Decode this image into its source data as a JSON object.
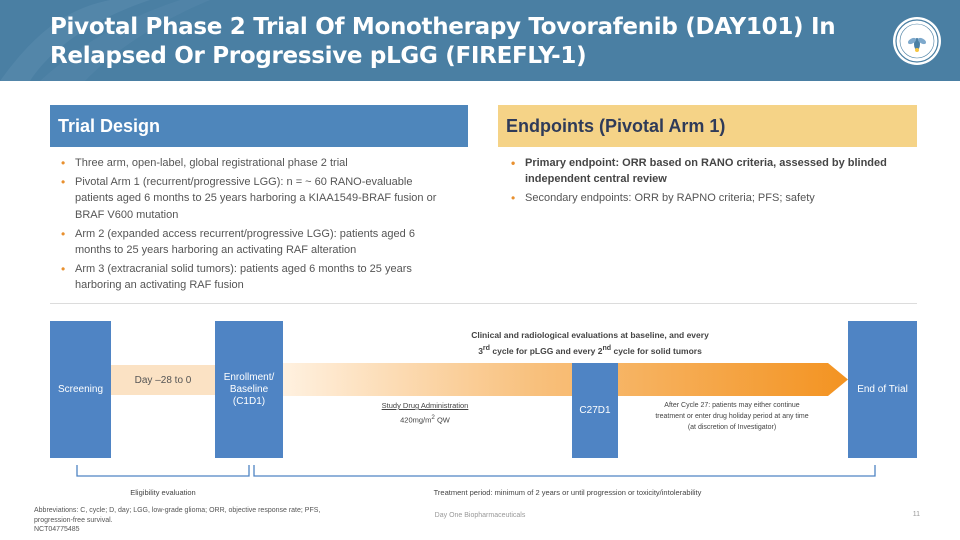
{
  "header": {
    "title": "Pivotal Phase 2 Trial Of Monotherapy Tovorafenib (DAY101) In Relapsed Or Progressive pLGG (FIREFLY-1)",
    "logo_text": "FIREFLY-1"
  },
  "trial_design": {
    "heading": "Trial Design",
    "bullets": [
      "Three arm, open-label, global registrational phase 2 trial",
      "Pivotal Arm 1 (recurrent/progressive LGG): n = ~ 60 RANO-evaluable patients aged 6 months to 25 years harboring a KIAA1549-BRAF fusion or BRAF V600 mutation",
      "Arm 2 (expanded access recurrent/progressive LGG): patients aged 6 months to 25 years harboring an activating RAF alteration",
      "Arm 3 (extracranial solid tumors): patients aged 6 months to 25 years harboring an activating RAF fusion"
    ]
  },
  "endpoints": {
    "heading": "Endpoints (Pivotal Arm 1)",
    "primary": "Primary endpoint: ORR based on RANO criteria, assessed by blinded independent central review",
    "secondary": "Secondary endpoints: ORR by RAPNO criteria; PFS; safety"
  },
  "diagram": {
    "screening": "Screening",
    "day_range": "Day –28 to 0",
    "enrollment_line1": "Enrollment/",
    "enrollment_line2": "Baseline",
    "enrollment_line3": "(C1D1)",
    "eval_line1": "Clinical and radiological evaluations at baseline, and every",
    "eval_line2_a": "3",
    "eval_line2_sup1": "rd",
    "eval_line2_b": " cycle for pLGG and every 2",
    "eval_line2_sup2": "nd",
    "eval_line2_c": " cycle for solid tumors",
    "drug_title": "Study Drug Administration",
    "drug_dose_a": "420mg/m",
    "drug_dose_sup": "2",
    "drug_dose_b": " QW",
    "c27": "C27D1",
    "after_line1": "After Cycle 27: patients may either continue",
    "after_line2": "treatment or enter drug holiday period at any time",
    "after_line3": "(at discretion of Investigator)",
    "end_of_trial": "End of Trial",
    "eligibility": "Eligibility evaluation",
    "treatment_period": "Treatment period: minimum of 2 years or until progression or toxicity/intolerability"
  },
  "footer": {
    "abbr_line1": "Abbreviations: C, cycle; D, day; LGG, low-grade glioma; ORR, objective response rate;  PFS,",
    "abbr_line2": "progression-free survival.",
    "nct": "NCT04775485",
    "company": "Day One Biopharmaceuticals",
    "page": "11"
  },
  "colors": {
    "header_bg": "#4a7fa3",
    "trial_head": "#4e86bb",
    "endpoint_head": "#f5d387",
    "box_blue": "#4f84c4",
    "arrow_orange": "#f39321",
    "bullet_orange": "#e8902f"
  }
}
